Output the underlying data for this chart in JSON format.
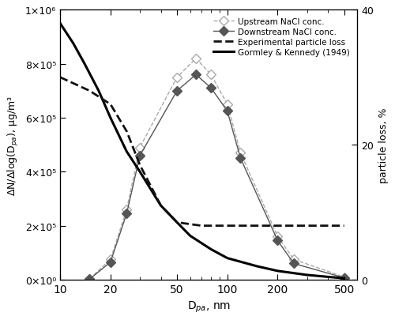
{
  "upstream_x": [
    15,
    20,
    25,
    30,
    50,
    65,
    80,
    100,
    120,
    200,
    250,
    500
  ],
  "upstream_y": [
    3000,
    75000,
    260000,
    490000,
    750000,
    820000,
    760000,
    650000,
    470000,
    160000,
    75000,
    10000
  ],
  "downstream_x": [
    15,
    20,
    25,
    30,
    50,
    65,
    80,
    100,
    120,
    200,
    250,
    500
  ],
  "downstream_y": [
    2000,
    65000,
    245000,
    460000,
    700000,
    760000,
    710000,
    625000,
    450000,
    145000,
    60000,
    7000
  ],
  "exp_loss_x": [
    10,
    15,
    20,
    25,
    30,
    40,
    50,
    70,
    100,
    150,
    200,
    300,
    500
  ],
  "exp_loss_y": [
    30,
    28,
    26,
    22,
    17,
    11,
    8.5,
    8.0,
    8.0,
    8.0,
    8.0,
    8.0,
    8.0
  ],
  "gk_x": [
    10,
    12,
    14,
    17,
    20,
    25,
    30,
    40,
    50,
    60,
    80,
    100,
    150,
    200,
    300,
    500
  ],
  "gk_y": [
    38,
    35,
    32,
    28,
    24,
    19,
    16,
    11,
    8.5,
    6.5,
    4.5,
    3.2,
    2.0,
    1.3,
    0.7,
    0.2
  ],
  "left_ylim": [
    0,
    1000000
  ],
  "left_yticks": [
    0,
    200000,
    400000,
    600000,
    800000,
    1000000
  ],
  "left_ytick_labels": [
    "0×10⁰",
    "2×10⁵",
    "4×10⁵",
    "6×10⁵",
    "8×10⁵",
    "1×10⁶"
  ],
  "right_ylim": [
    0,
    40
  ],
  "right_yticks": [
    0,
    20,
    40
  ],
  "xlim": [
    10,
    600
  ],
  "xlabel": "D$_{pa}$, nm",
  "ylabel_left": "ΔN/Δlog(D$_{pa}$), μg/m³",
  "ylabel_right": "particle loss, %",
  "legend_labels": [
    "Upstream NaCl conc.",
    "Downstream NaCl conc.",
    "Experimental particle loss",
    "Gormley & Kennedy (1949)"
  ],
  "color_upstream": "#aaaaaa",
  "color_downstream": "#555555",
  "color_exp": "#111111",
  "color_gk": "#000000",
  "background_color": "#ffffff"
}
